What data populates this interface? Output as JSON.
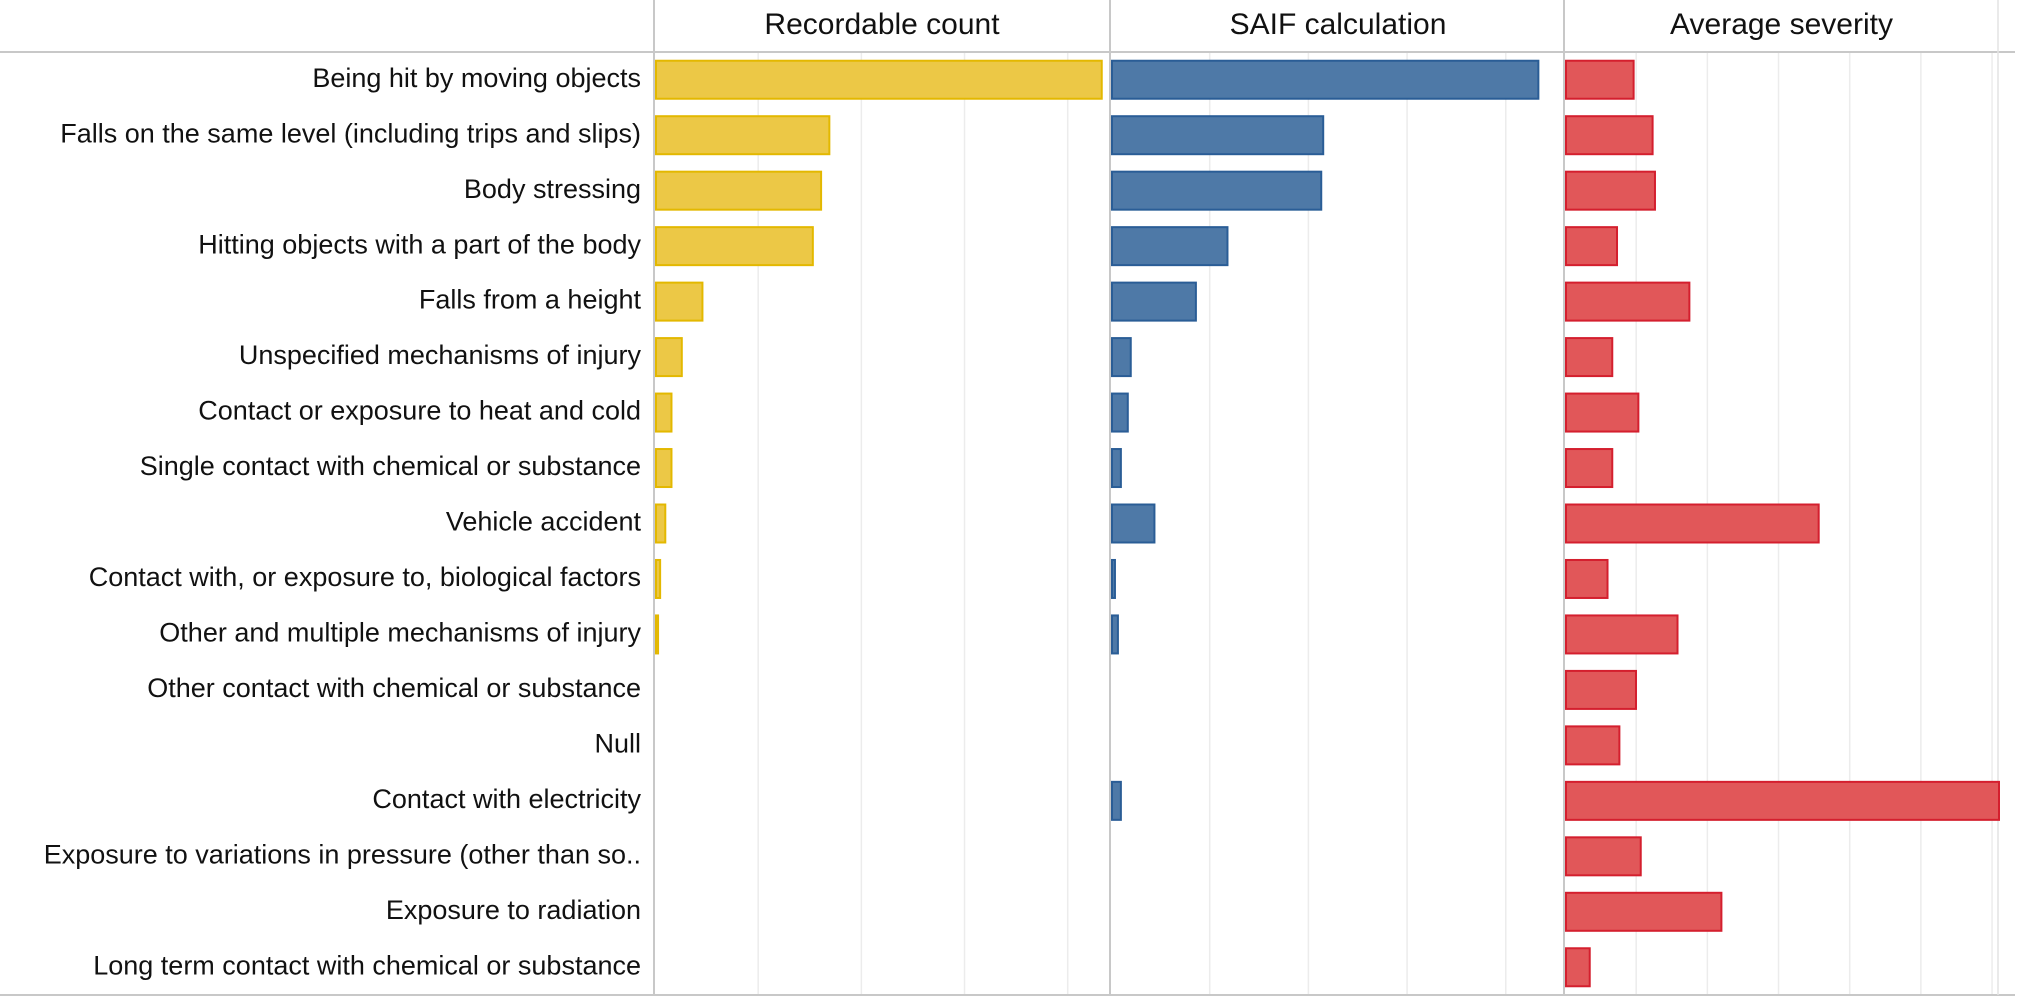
{
  "chart_data": {
    "type": "bar",
    "orientation": "horizontal",
    "categories": [
      "Being hit by moving objects",
      "Falls on the same level (including trips and slips)",
      "Body stressing",
      "Hitting objects with a part of the body",
      "Falls from a height",
      "Unspecified mechanisms of injury",
      "Contact or exposure to heat and cold",
      "Single contact with chemical or substance",
      "Vehicle accident",
      "Contact with, or exposure to, biological factors",
      "Other and multiple mechanisms of injury",
      "Other contact with chemical or substance",
      "Null",
      "Contact with electricity",
      "Exposure to variations in pressure (other than so..",
      "Exposure to radiation",
      "Long term contact with chemical or substance"
    ],
    "series": [
      {
        "name": "Recordable count",
        "color": "#ecc846",
        "stroke": "#e3b800",
        "xlim": [
          0,
          440
        ],
        "values": [
          432,
          168,
          160,
          152,
          45,
          25,
          15,
          15,
          9,
          4,
          2,
          0,
          0,
          0,
          0,
          0,
          0
        ]
      },
      {
        "name": "SAIF calculation",
        "color": "#4e79a7",
        "stroke": "#2a5d96",
        "xlim": [
          0,
          460
        ],
        "values": [
          432,
          214,
          212,
          117,
          85,
          19,
          16,
          9,
          43,
          3,
          6,
          0,
          0,
          9,
          0,
          0,
          0
        ]
      },
      {
        "name": "Average severity",
        "color": "#e15759",
        "stroke": "#d41f2e",
        "xlim": [
          0,
          36.5
        ],
        "values": [
          5.7,
          7.3,
          7.5,
          4.3,
          10.4,
          3.9,
          6.1,
          3.9,
          21.3,
          3.5,
          9.4,
          5.9,
          4.5,
          36.5,
          6.3,
          13.1,
          2.0
        ]
      }
    ],
    "gridlines": true,
    "legend": "none"
  }
}
